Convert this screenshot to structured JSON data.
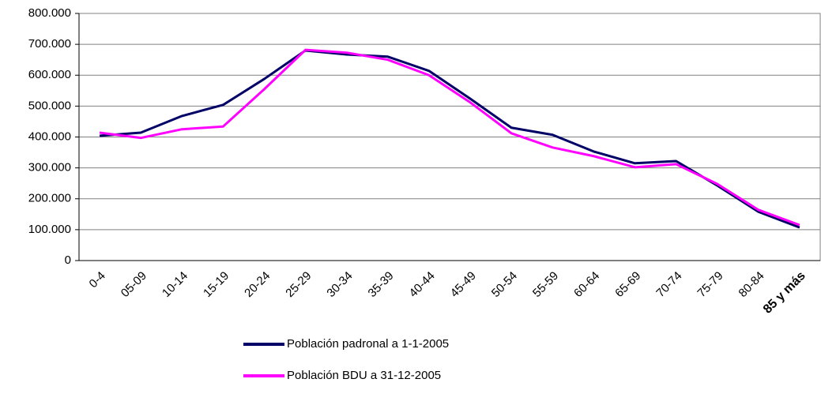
{
  "chart_data": {
    "type": "line",
    "categories": [
      "0-4",
      "05-09",
      "10-14",
      "15-19",
      "20-24",
      "25-29",
      "30-34",
      "35-39",
      "40-44",
      "45-49",
      "50-54",
      "55-59",
      "60-64",
      "65-69",
      "70-74",
      "75-79",
      "80-84",
      "85 y más"
    ],
    "series": [
      {
        "name": "Población padronal a 1-1-2005",
        "color": "#000066",
        "values": [
          404000,
          414000,
          468000,
          504000,
          588000,
          680000,
          667000,
          660000,
          614000,
          524000,
          430000,
          407000,
          353000,
          315000,
          322000,
          243000,
          158000,
          107000
        ]
      },
      {
        "name": "Población BDU a 31-12-2005",
        "color": "#ff00ff",
        "values": [
          414000,
          397000,
          425000,
          434000,
          555000,
          682000,
          673000,
          650000,
          600000,
          512000,
          412000,
          366000,
          338000,
          302000,
          312000,
          248000,
          164000,
          115000
        ]
      }
    ],
    "ylim": [
      0,
      800000
    ],
    "yticks": [
      0,
      {
        "value": 100000,
        "label": "100.000"
      },
      {
        "value": 200000,
        "label": "200.000"
      },
      {
        "value": 300000,
        "label": "300.000"
      },
      {
        "value": 400000,
        "label": "400.000"
      },
      {
        "value": 500000,
        "label": "500.000"
      },
      {
        "value": 600000,
        "label": "600.000"
      },
      {
        "value": 700000,
        "label": "700.000"
      },
      {
        "value": 800000,
        "label": "800.000"
      }
    ],
    "grid": true
  }
}
